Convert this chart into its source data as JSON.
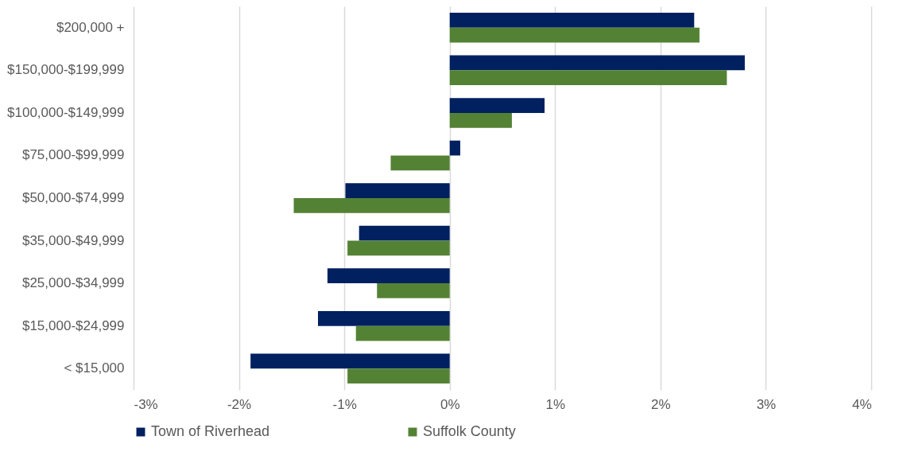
{
  "chart_data": {
    "type": "bar",
    "orientation": "horizontal",
    "categories": [
      "$200,000 +",
      "$150,000-$199,999",
      "$100,000-$149,999",
      "$75,000-$99,999",
      "$50,000-$74,999",
      "$35,000-$49,999",
      "$25,000-$34,999",
      "$15,000-$24,999",
      "< $15,000"
    ],
    "series": [
      {
        "name": "Town of Riverhead",
        "color": "#002060",
        "values": [
          2.32,
          2.8,
          0.9,
          0.1,
          -0.99,
          -0.86,
          -1.16,
          -1.25,
          -1.89
        ]
      },
      {
        "name": "Suffolk County",
        "color": "#548235",
        "values": [
          2.37,
          2.63,
          0.59,
          -0.56,
          -1.48,
          -0.97,
          -0.69,
          -0.89,
          -0.97
        ]
      }
    ],
    "xlim": [
      -3,
      4
    ],
    "xticks": [
      {
        "value": -3,
        "label": "-3%"
      },
      {
        "value": -2,
        "label": "-2%"
      },
      {
        "value": -1,
        "label": "-1%"
      },
      {
        "value": 0,
        "label": "0%"
      },
      {
        "value": 1,
        "label": "1%"
      },
      {
        "value": 2,
        "label": "2%"
      },
      {
        "value": 3,
        "label": "3%"
      },
      {
        "value": 4,
        "label": "4%"
      }
    ],
    "grid": "x",
    "legend": "bottom"
  }
}
